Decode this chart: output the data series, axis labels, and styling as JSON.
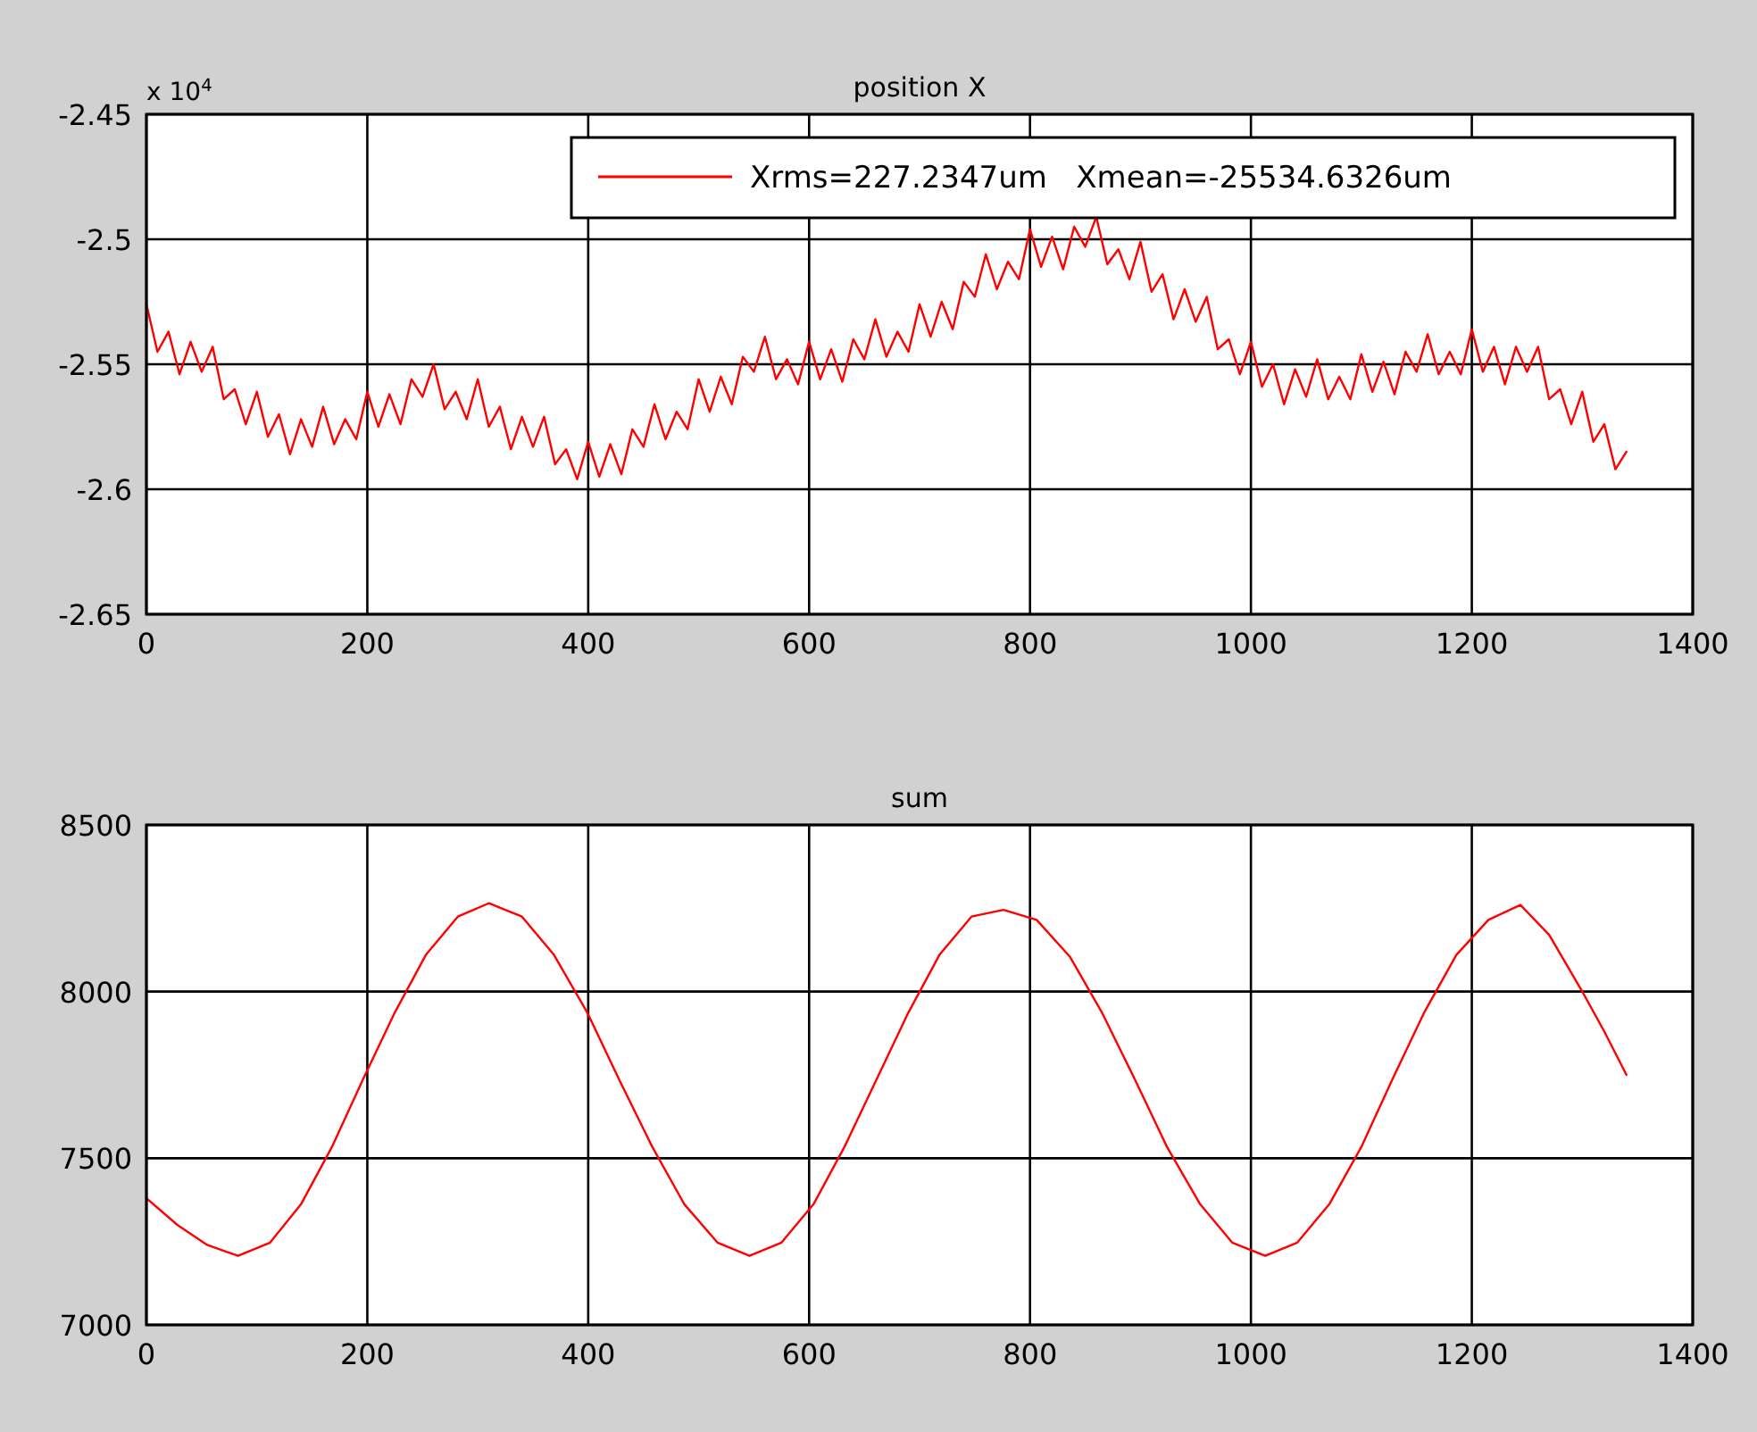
{
  "chart_data": [
    {
      "type": "line",
      "title": "position X",
      "annotations": [
        "x 10$^{4}$"
      ],
      "grid": true,
      "legend": "top right",
      "xlim": [
        0,
        1400
      ],
      "xticks": [
        0,
        200,
        400,
        600,
        800,
        1000,
        1200,
        1400
      ],
      "ylim": [
        -2.65,
        -2.45
      ],
      "yticks": [
        -2.65,
        -2.6,
        -2.55,
        -2.5,
        -2.45
      ],
      "x": [
        0,
        10,
        20,
        30,
        40,
        50,
        60,
        70,
        80,
        90,
        100,
        110,
        120,
        130,
        140,
        150,
        160,
        170,
        180,
        190,
        200,
        210,
        220,
        230,
        240,
        250,
        260,
        270,
        280,
        290,
        300,
        310,
        320,
        330,
        340,
        350,
        360,
        370,
        380,
        390,
        400,
        410,
        420,
        430,
        440,
        450,
        460,
        470,
        480,
        490,
        500,
        510,
        520,
        530,
        540,
        550,
        560,
        570,
        580,
        590,
        600,
        610,
        620,
        630,
        640,
        650,
        660,
        670,
        680,
        690,
        700,
        710,
        720,
        730,
        740,
        750,
        760,
        770,
        780,
        790,
        800,
        810,
        820,
        830,
        840,
        850,
        860,
        870,
        880,
        890,
        900,
        910,
        920,
        930,
        940,
        950,
        960,
        970,
        980,
        990,
        1000,
        1010,
        1020,
        1030,
        1040,
        1050,
        1060,
        1070,
        1080,
        1090,
        1100,
        1110,
        1120,
        1130,
        1140,
        1150,
        1160,
        1170,
        1180,
        1190,
        1200,
        1210,
        1220,
        1230,
        1240,
        1250,
        1260,
        1270,
        1280,
        1290,
        1300,
        1310,
        1320,
        1330,
        1340
      ],
      "series": [
        {
          "name": "Xrms=227.2347um   Xmean=-25534.6326um",
          "color": "#ff0000",
          "values": [
            -2.526,
            -2.545,
            -2.537,
            -2.554,
            -2.541,
            -2.553,
            -2.543,
            -2.564,
            -2.56,
            -2.574,
            -2.561,
            -2.579,
            -2.57,
            -2.586,
            -2.572,
            -2.583,
            -2.567,
            -2.582,
            -2.572,
            -2.58,
            -2.561,
            -2.575,
            -2.562,
            -2.574,
            -2.556,
            -2.563,
            -2.55,
            -2.568,
            -2.561,
            -2.572,
            -2.556,
            -2.575,
            -2.567,
            -2.584,
            -2.571,
            -2.583,
            -2.571,
            -2.59,
            -2.584,
            -2.596,
            -2.581,
            -2.595,
            -2.582,
            -2.594,
            -2.576,
            -2.583,
            -2.566,
            -2.58,
            -2.569,
            -2.576,
            -2.556,
            -2.569,
            -2.555,
            -2.566,
            -2.547,
            -2.553,
            -2.539,
            -2.556,
            -2.548,
            -2.558,
            -2.541,
            -2.556,
            -2.544,
            -2.557,
            -2.54,
            -2.548,
            -2.532,
            -2.547,
            -2.537,
            -2.545,
            -2.526,
            -2.539,
            -2.525,
            -2.536,
            -2.517,
            -2.523,
            -2.506,
            -2.52,
            -2.509,
            -2.516,
            -2.496,
            -2.511,
            -2.499,
            -2.512,
            -2.495,
            -2.503,
            -2.491,
            -2.51,
            -2.504,
            -2.516,
            -2.501,
            -2.521,
            -2.514,
            -2.532,
            -2.52,
            -2.533,
            -2.523,
            -2.544,
            -2.54,
            -2.554,
            -2.541,
            -2.559,
            -2.55,
            -2.566,
            -2.552,
            -2.563,
            -2.548,
            -2.564,
            -2.555,
            -2.564,
            -2.546,
            -2.561,
            -2.549,
            -2.562,
            -2.545,
            -2.553,
            -2.538,
            -2.554,
            -2.545,
            -2.554,
            -2.536,
            -2.553,
            -2.543,
            -2.558,
            -2.543,
            -2.553,
            -2.543,
            -2.564,
            -2.56,
            -2.574,
            -2.561,
            -2.581,
            -2.574,
            -2.592,
            -2.585
          ]
        }
      ]
    },
    {
      "type": "line",
      "title": "sum",
      "grid": true,
      "xlim": [
        0,
        1400
      ],
      "xticks": [
        0,
        200,
        400,
        600,
        800,
        1000,
        1200,
        1400
      ],
      "ylim": [
        7000,
        8500
      ],
      "yticks": [
        7000,
        7500,
        8000,
        8500
      ],
      "x": [
        0,
        28,
        55,
        83,
        112,
        140,
        168,
        196,
        225,
        253,
        282,
        310,
        340,
        369,
        399,
        428,
        458,
        487,
        517,
        546,
        575,
        604,
        632,
        661,
        690,
        718,
        747,
        776,
        806,
        836,
        865,
        895,
        924,
        954,
        983,
        1013,
        1042,
        1071,
        1100,
        1128,
        1157,
        1186,
        1215,
        1244,
        1270,
        1300,
        1320,
        1340
      ],
      "series": [
        {
          "color": "#ff0000",
          "values": [
            7380,
            7300,
            7240,
            7207,
            7247,
            7362,
            7534,
            7736,
            7938,
            8110,
            8225,
            8265,
            8225,
            8110,
            7938,
            7736,
            7534,
            7362,
            7247,
            7207,
            7247,
            7362,
            7534,
            7736,
            7938,
            8110,
            8225,
            8245,
            8215,
            8105,
            7938,
            7736,
            7534,
            7362,
            7247,
            7207,
            7247,
            7362,
            7534,
            7736,
            7938,
            8110,
            8215,
            8260,
            8170,
            8000,
            7880,
            7750
          ]
        }
      ]
    }
  ]
}
